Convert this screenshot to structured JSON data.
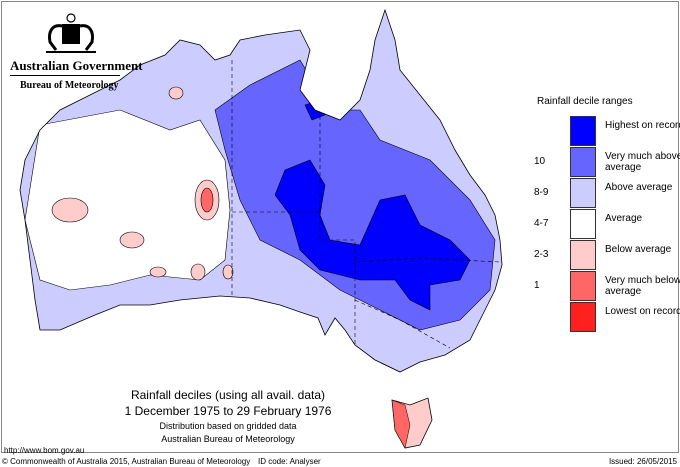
{
  "header": {
    "government": "Australian Government",
    "bureau": "Bureau of Meteorology"
  },
  "legend": {
    "title": "Rainfall decile ranges",
    "items": [
      {
        "decile": "",
        "label": "Highest on record",
        "color": "#0000ff"
      },
      {
        "decile": "10",
        "label": "Very much above average",
        "color": "#6666ff"
      },
      {
        "decile": "8-9",
        "label": "Above average",
        "color": "#ccccff"
      },
      {
        "decile": "4-7",
        "label": "Average",
        "color": "#ffffff"
      },
      {
        "decile": "2-3",
        "label": "Below average",
        "color": "#ffcccc"
      },
      {
        "decile": "1",
        "label": "Very much below average",
        "color": "#ff6666"
      },
      {
        "decile": "",
        "label": "Lowest on record",
        "color": "#ff2020"
      }
    ]
  },
  "caption": {
    "title": "Rainfall deciles (using all avail. data)",
    "period": "1 December 1975 to 29 February 1976",
    "note": "Distribution based on gridded data",
    "source": "Australian Bureau of Meteorology"
  },
  "url": "http://www.bom.gov.au",
  "footer": {
    "copyright": "© Commonwealth of Australia 2015, Australian Bureau of Meteorology",
    "id_code": "ID code: Analyser",
    "issued": "Issued: 26/05/2015"
  }
}
